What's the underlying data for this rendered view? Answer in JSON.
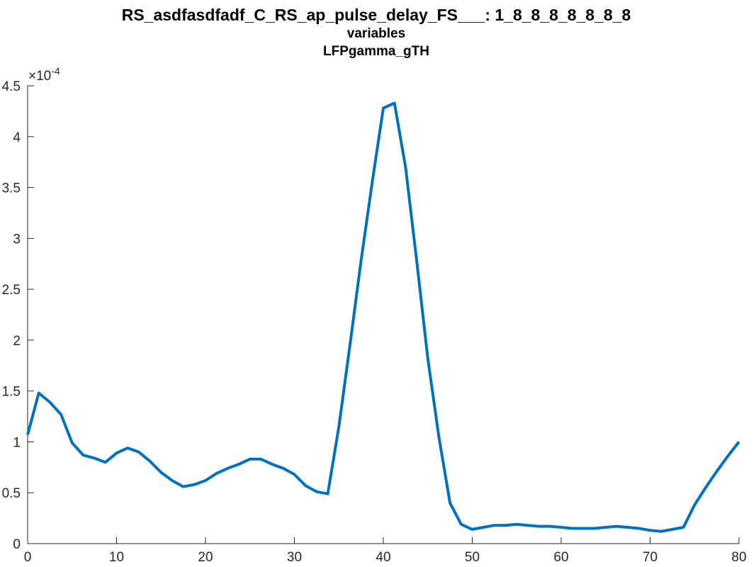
{
  "chart_data": {
    "type": "line",
    "title": "RS_asdfasdfadf_C_RS_ap_pulse_delay_FS___: 1_8_8_8_8_8_8_8",
    "subtitle": [
      "variables",
      "LFPgamma_gTH"
    ],
    "xlabel": "",
    "ylabel": "",
    "xlim": [
      0,
      80
    ],
    "ylim": [
      0,
      4.5
    ],
    "y_exponent_label": "×10",
    "y_exponent_power": "-4",
    "xticks": [
      "0",
      "10",
      "20",
      "30",
      "40",
      "50",
      "60",
      "70",
      "80"
    ],
    "yticks": [
      "0",
      "0.5",
      "1",
      "1.5",
      "2",
      "2.5",
      "3",
      "3.5",
      "4",
      "4.5"
    ],
    "grid": false,
    "line_color": "#0072bd",
    "series": [
      {
        "x": [
          0,
          1.25,
          2.5,
          3.75,
          5,
          6.25,
          7.5,
          8.75,
          10,
          11.25,
          12.5,
          13.75,
          15,
          16.25,
          17.5,
          18.75,
          20,
          21.25,
          22.5,
          23.75,
          25,
          26.25,
          27.5,
          28.75,
          30,
          31.25,
          32.5,
          33.75,
          35,
          36.25,
          37.5,
          38.75,
          40,
          41.25,
          42.5,
          43.75,
          45,
          46.25,
          47.5,
          48.75,
          50,
          51.25,
          52.5,
          53.75,
          55,
          56.25,
          57.5,
          58.75,
          60,
          61.25,
          62.5,
          63.75,
          65,
          66.25,
          67.5,
          68.75,
          70,
          71.25,
          72.5,
          73.75,
          75,
          76.25,
          77.5,
          78.75,
          80
        ],
        "y": [
          1.07,
          1.48,
          1.39,
          1.27,
          0.99,
          0.87,
          0.84,
          0.8,
          0.89,
          0.94,
          0.9,
          0.81,
          0.7,
          0.62,
          0.56,
          0.58,
          0.62,
          0.69,
          0.74,
          0.78,
          0.83,
          0.83,
          0.78,
          0.74,
          0.68,
          0.57,
          0.51,
          0.49,
          1.15,
          1.95,
          2.78,
          3.55,
          4.28,
          4.33,
          3.7,
          2.78,
          1.82,
          1.05,
          0.4,
          0.19,
          0.14,
          0.16,
          0.18,
          0.18,
          0.19,
          0.18,
          0.17,
          0.17,
          0.16,
          0.15,
          0.15,
          0.15,
          0.16,
          0.17,
          0.16,
          0.15,
          0.13,
          0.12,
          0.14,
          0.16,
          0.38,
          0.55,
          0.71,
          0.86,
          1.0
        ]
      }
    ]
  }
}
